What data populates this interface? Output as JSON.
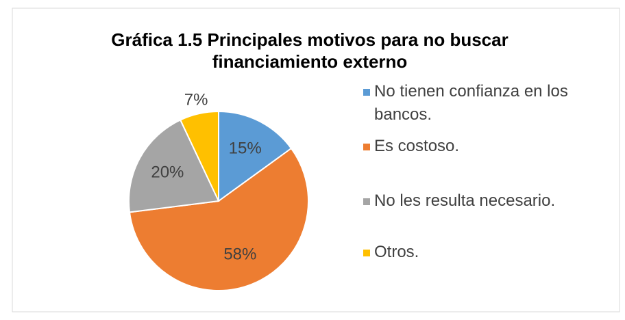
{
  "chart_data": {
    "type": "pie",
    "title": "Gráfica 1.5 Principales motivos para no buscar financiamiento externo",
    "categories": [
      "No tienen confianza en los bancos.",
      "Es costoso.",
      "No les resulta necesario.",
      "Otros."
    ],
    "values": [
      15,
      58,
      20,
      7
    ],
    "value_labels": [
      "15%",
      "58%",
      "20%",
      "7%"
    ],
    "colors": [
      "#5b9bd5",
      "#ed7d31",
      "#a5a5a5",
      "#ffc000"
    ],
    "legend": "right"
  }
}
